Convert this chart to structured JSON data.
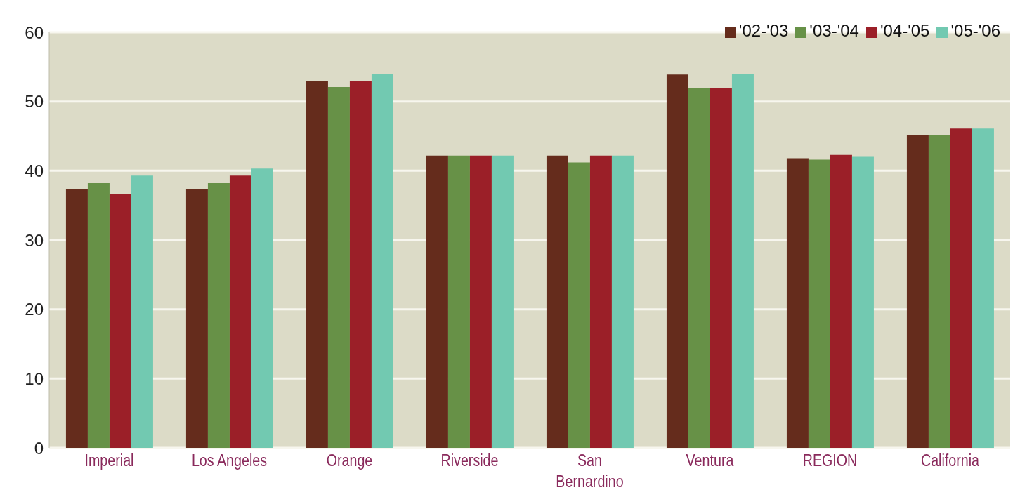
{
  "chart_data": {
    "type": "bar",
    "categories": [
      "Imperial",
      "Los Angeles",
      "Orange",
      "Riverside",
      "San Bernardino",
      "Ventura",
      "REGION",
      "California"
    ],
    "series": [
      {
        "name": "'02-'03",
        "color": "#652c1c",
        "values": [
          37.4,
          37.4,
          53,
          42.2,
          42.2,
          53.9,
          41.8,
          45.2
        ]
      },
      {
        "name": "'03-'04",
        "color": "#679147",
        "values": [
          38.3,
          38.3,
          52.1,
          42.2,
          41.2,
          52,
          41.6,
          45.2
        ]
      },
      {
        "name": "'04-'05",
        "color": "#9b1f28",
        "values": [
          36.7,
          39.3,
          53,
          42.2,
          42.2,
          52,
          42.3,
          46.1
        ]
      },
      {
        "name": "'05-'06",
        "color": "#72c9b1",
        "values": [
          39.3,
          40.3,
          54,
          42.2,
          42.2,
          54,
          42.1,
          46.1
        ]
      }
    ],
    "ylim": [
      0,
      60
    ],
    "yticks": [
      0,
      10,
      20,
      30,
      40,
      50,
      60
    ],
    "grid": "y",
    "legend": "top right"
  }
}
